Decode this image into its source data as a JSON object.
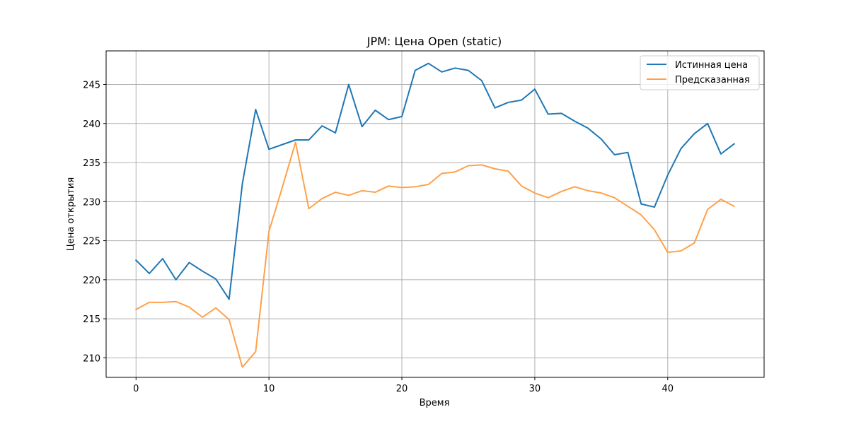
{
  "chart_data": {
    "type": "line",
    "title": "JPM: Цена Open (static)",
    "xlabel": "Время",
    "ylabel": "Цена открытия",
    "xlim": [
      -2.25,
      47.25
    ],
    "ylim": [
      207.5,
      249.3
    ],
    "x_ticks": [
      0,
      10,
      20,
      30,
      40
    ],
    "y_ticks": [
      210,
      215,
      220,
      225,
      230,
      235,
      240,
      245
    ],
    "grid": true,
    "legend_position": "top-right",
    "x": [
      0,
      1,
      2,
      3,
      4,
      5,
      6,
      7,
      8,
      9,
      10,
      11,
      12,
      13,
      14,
      15,
      16,
      17,
      18,
      19,
      20,
      21,
      22,
      23,
      24,
      25,
      26,
      27,
      28,
      29,
      30,
      31,
      32,
      33,
      34,
      35,
      36,
      37,
      38,
      39,
      40,
      41,
      42,
      43,
      44,
      45
    ],
    "series": [
      {
        "name": "Истинная цена",
        "color": "#1f77b4",
        "values": [
          222.5,
          220.8,
          222.7,
          220.0,
          222.2,
          221.1,
          220.1,
          217.5,
          232.3,
          241.8,
          236.7,
          237.3,
          237.9,
          237.9,
          239.7,
          238.8,
          245.0,
          239.6,
          241.7,
          240.5,
          240.9,
          246.8,
          247.7,
          246.6,
          247.1,
          246.8,
          245.5,
          242.0,
          242.7,
          243.0,
          244.4,
          241.2,
          241.3,
          240.3,
          239.4,
          238.0,
          236.0,
          236.3,
          229.7,
          229.3,
          233.4,
          236.8,
          238.7,
          240.0,
          236.1,
          237.4
        ]
      },
      {
        "name": "Предсказанная",
        "color": "#ffa14a",
        "values": [
          216.2,
          217.1,
          217.1,
          217.2,
          216.5,
          215.2,
          216.4,
          214.9,
          208.8,
          210.8,
          226.2,
          231.8,
          237.6,
          229.1,
          230.4,
          231.2,
          230.8,
          231.4,
          231.2,
          232.0,
          231.8,
          231.9,
          232.2,
          233.6,
          233.8,
          234.6,
          234.7,
          234.2,
          233.9,
          232.0,
          231.1,
          230.5,
          231.3,
          231.9,
          231.4,
          231.1,
          230.5,
          229.4,
          228.3,
          226.4,
          223.5,
          223.7,
          224.7,
          229.0,
          230.3,
          229.4
        ]
      }
    ]
  }
}
